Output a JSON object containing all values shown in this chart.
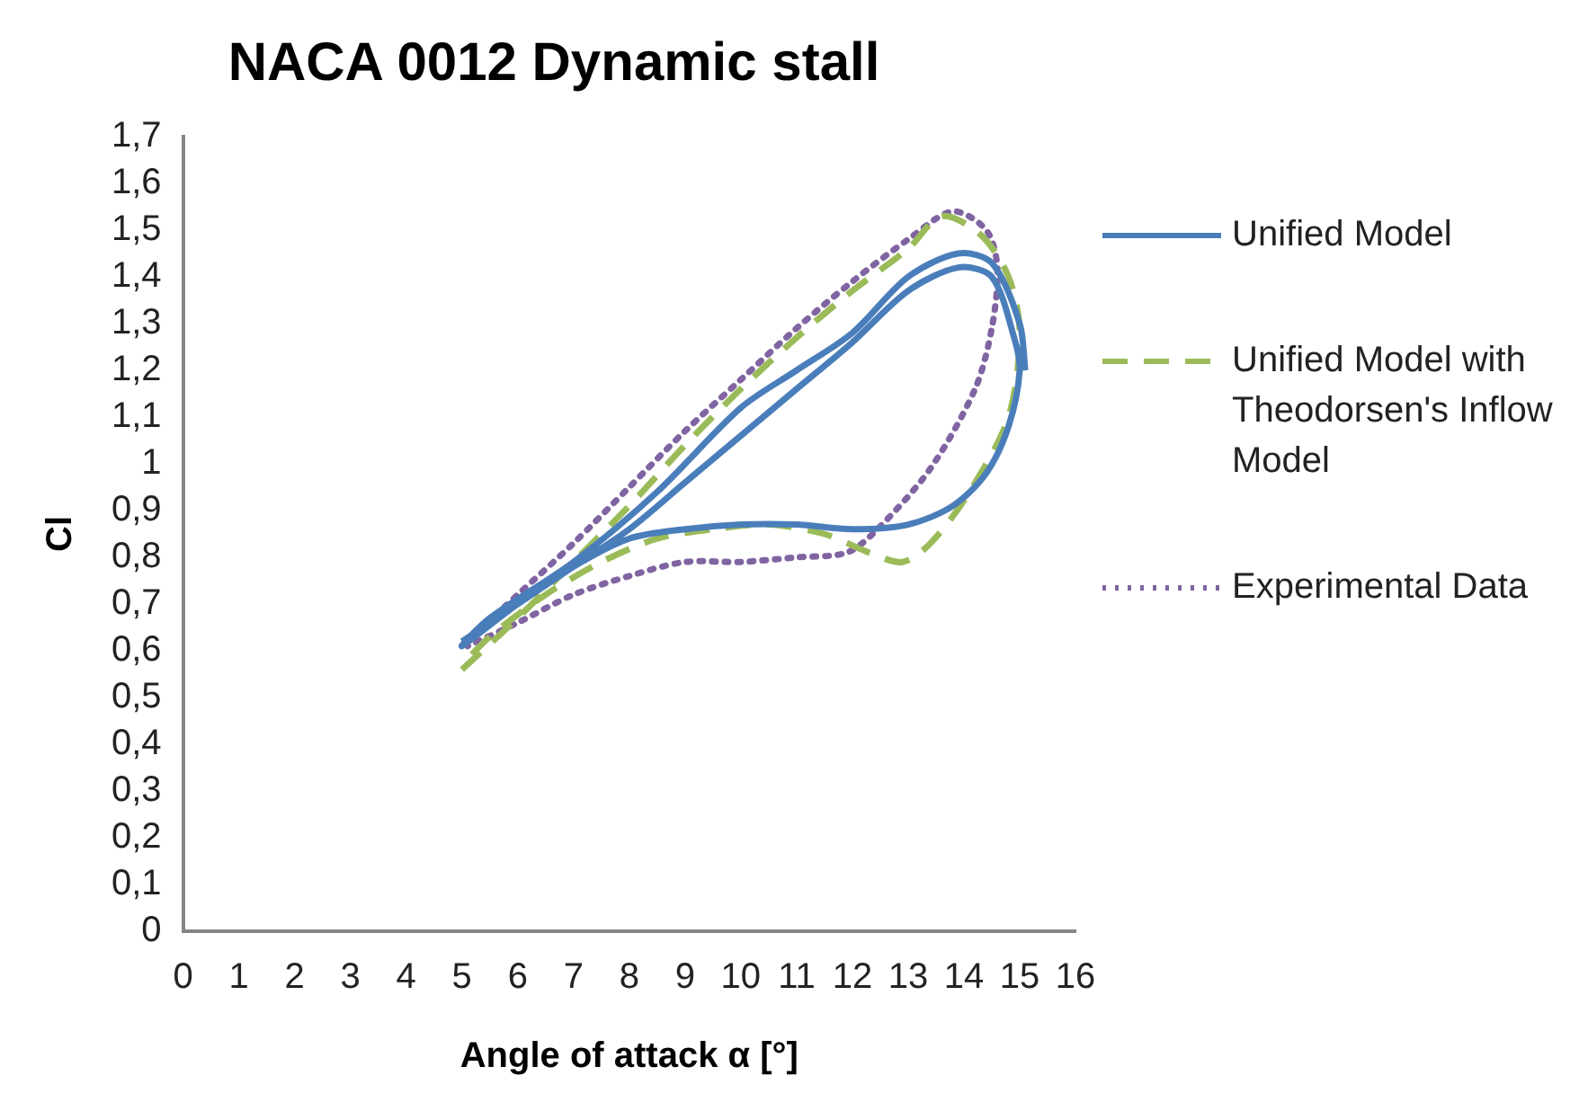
{
  "chart_data": {
    "type": "line",
    "title": "NACA 0012 Dynamic stall",
    "xlabel": "Angle of attack α [°]",
    "ylabel": "Cl",
    "legend": "right",
    "xlim": [
      0,
      16
    ],
    "xticks": [
      0,
      1,
      2,
      3,
      4,
      5,
      6,
      7,
      8,
      9,
      10,
      11,
      12,
      13,
      14,
      15,
      16
    ],
    "ylim": [
      0,
      1.7
    ],
    "yticks": [
      0,
      {
        "value": 0.1,
        "label": "0,1"
      },
      {
        "value": 0.2,
        "label": "0,2"
      },
      {
        "value": 0.3,
        "label": "0,3"
      },
      {
        "value": 0.4,
        "label": "0,4"
      },
      {
        "value": 0.5,
        "label": "0,5"
      },
      {
        "value": 0.6,
        "label": "0,6"
      },
      {
        "value": 0.7,
        "label": "0,7"
      },
      {
        "value": 0.8,
        "label": "0,8"
      },
      {
        "value": 0.9,
        "label": "0,9"
      },
      1,
      {
        "value": 1.1,
        "label": "1,1"
      },
      {
        "value": 1.2,
        "label": "1,2"
      },
      {
        "value": 1.3,
        "label": "1,3"
      },
      {
        "value": 1.4,
        "label": "1,4"
      },
      {
        "value": 1.5,
        "label": "1,5"
      },
      {
        "value": 1.6,
        "label": "1,6"
      },
      {
        "value": 1.7,
        "label": "1,7"
      }
    ],
    "series": [
      {
        "name": "Unified Model",
        "color": "#4a7ebb",
        "line_style": "solid",
        "x": [
          5.0,
          6.0,
          7.0,
          8.0,
          9.0,
          10.0,
          11.0,
          12.0,
          13.0,
          13.9,
          14.5,
          14.9,
          15.0,
          14.8,
          14.4,
          13.8,
          13.0,
          12.0,
          11.0,
          10.0,
          9.0,
          8.0,
          7.0,
          6.0,
          5.0,
          5.5,
          7.0,
          8.5,
          10.0,
          11.0,
          12.0,
          13.0,
          13.9,
          14.5,
          15.0,
          15.1
        ],
        "values": [
          0.62,
          0.7,
          0.78,
          0.86,
          0.96,
          1.06,
          1.16,
          1.26,
          1.37,
          1.42,
          1.4,
          1.27,
          1.2,
          1.08,
          0.98,
          0.91,
          0.87,
          0.86,
          0.87,
          0.87,
          0.86,
          0.84,
          0.78,
          0.7,
          0.61,
          0.67,
          0.79,
          0.94,
          1.12,
          1.2,
          1.28,
          1.4,
          1.45,
          1.43,
          1.3,
          1.2
        ]
      },
      {
        "name": "Unified Model with Theodorsen's Inflow Model",
        "color": "#9bbb59",
        "line_style": "dashed",
        "x": [
          5.0,
          6.0,
          7.0,
          8.0,
          9.0,
          10.0,
          11.0,
          12.0,
          13.0,
          13.6,
          14.3,
          14.8,
          15.0,
          14.8,
          14.1,
          13.4,
          12.9,
          12.3,
          11.5,
          10.5,
          9.5,
          8.5,
          7.5,
          6.5,
          5.5,
          5.0
        ],
        "values": [
          0.56,
          0.67,
          0.79,
          0.91,
          1.04,
          1.16,
          1.27,
          1.37,
          1.46,
          1.53,
          1.49,
          1.4,
          1.28,
          1.1,
          0.94,
          0.83,
          0.79,
          0.81,
          0.85,
          0.87,
          0.86,
          0.84,
          0.79,
          0.72,
          0.63,
          0.57
        ]
      },
      {
        "name": "Experimental Data",
        "color": "#8064a2",
        "line_style": "dotted",
        "x": [
          5.1,
          6.0,
          7.0,
          8.0,
          9.0,
          10.0,
          11.0,
          12.0,
          13.0,
          13.8,
          14.4,
          14.6,
          14.5,
          14.2,
          13.4,
          12.45,
          11.9,
          11.0,
          10.0,
          9.0,
          8.0,
          7.0,
          6.0,
          5.1
        ],
        "values": [
          0.62,
          0.72,
          0.83,
          0.95,
          1.07,
          1.18,
          1.29,
          1.39,
          1.48,
          1.54,
          1.5,
          1.42,
          1.29,
          1.16,
          0.99,
          0.86,
          0.81,
          0.8,
          0.79,
          0.79,
          0.76,
          0.72,
          0.66,
          0.61
        ]
      }
    ]
  }
}
